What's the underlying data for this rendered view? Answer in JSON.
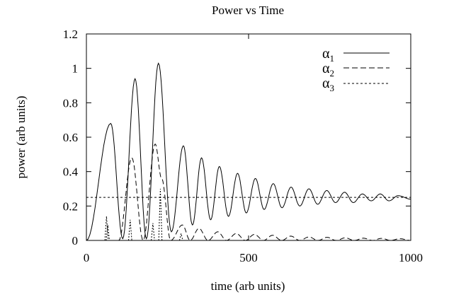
{
  "chart_data": {
    "type": "line",
    "title": "Power vs Time",
    "xlabel": "time (arb units)",
    "ylabel": "power (arb units)",
    "xlim": [
      0,
      1000
    ],
    "ylim": [
      0,
      1.2
    ],
    "xticks": [
      0,
      500,
      1000
    ],
    "yticks": [
      0,
      0.2,
      0.4,
      0.6,
      0.8,
      1,
      1.2
    ],
    "xtick_labels": [
      "0",
      "500",
      "1000"
    ],
    "ytick_labels": [
      "0",
      "0.2",
      "0.4",
      "0.6",
      "0.8",
      "1",
      "1.2"
    ],
    "grid": false,
    "legend_position": "top-right",
    "series": [
      {
        "name": "α1",
        "style": "solid",
        "peaks": [
          [
            75,
            0.68
          ],
          [
            150,
            0.94
          ],
          [
            222,
            1.03
          ],
          [
            299,
            0.55
          ],
          [
            355,
            0.48
          ],
          [
            410,
            0.43
          ],
          [
            466,
            0.39
          ],
          [
            521,
            0.36
          ],
          [
            576,
            0.33
          ],
          [
            631,
            0.31
          ],
          [
            686,
            0.3
          ],
          [
            741,
            0.29
          ],
          [
            796,
            0.28
          ],
          [
            851,
            0.27
          ],
          [
            906,
            0.27
          ],
          [
            961,
            0.26
          ]
        ],
        "troughs": [
          [
            0,
            0.0
          ],
          [
            112,
            0.01
          ],
          [
            185,
            0.01
          ],
          [
            262,
            0.05
          ],
          [
            327,
            0.09
          ],
          [
            383,
            0.12
          ],
          [
            438,
            0.14
          ],
          [
            493,
            0.16
          ],
          [
            548,
            0.18
          ],
          [
            603,
            0.19
          ],
          [
            658,
            0.2
          ],
          [
            713,
            0.21
          ],
          [
            768,
            0.22
          ],
          [
            823,
            0.22
          ],
          [
            878,
            0.23
          ],
          [
            933,
            0.23
          ],
          [
            1000,
            0.24
          ]
        ]
      },
      {
        "name": "α2",
        "style": "dashed",
        "peaks": [
          [
            140,
            0.48
          ],
          [
            212,
            0.56
          ],
          [
            232,
            0.36
          ],
          [
            296,
            0.09
          ],
          [
            347,
            0.07
          ],
          [
            405,
            0.05
          ],
          [
            462,
            0.04
          ],
          [
            518,
            0.035
          ],
          [
            574,
            0.03
          ],
          [
            630,
            0.025
          ],
          [
            686,
            0.02
          ],
          [
            742,
            0.018
          ],
          [
            798,
            0.015
          ],
          [
            854,
            0.013
          ],
          [
            910,
            0.012
          ],
          [
            966,
            0.01
          ]
        ],
        "troughs": [
          [
            0,
            0.0
          ],
          [
            100,
            0.0
          ],
          [
            175,
            0.0
          ],
          [
            260,
            0.0
          ],
          [
            320,
            0.0
          ],
          [
            375,
            0.0
          ],
          [
            432,
            0.0
          ],
          [
            490,
            0.0
          ],
          [
            546,
            0.0
          ],
          [
            602,
            0.0
          ],
          [
            658,
            0.0
          ],
          [
            714,
            0.0
          ],
          [
            770,
            0.0
          ],
          [
            826,
            0.0
          ],
          [
            882,
            0.0
          ],
          [
            938,
            0.0
          ],
          [
            1000,
            0.0
          ]
        ]
      },
      {
        "name": "α3",
        "style": "dotted",
        "constant": 0.25,
        "spikes": [
          [
            62,
            0.14
          ],
          [
            66,
            0.09
          ],
          [
            135,
            0.12
          ],
          [
            205,
            0.1
          ],
          [
            228,
            0.3
          ],
          [
            292,
            0.04
          ]
        ]
      }
    ]
  }
}
